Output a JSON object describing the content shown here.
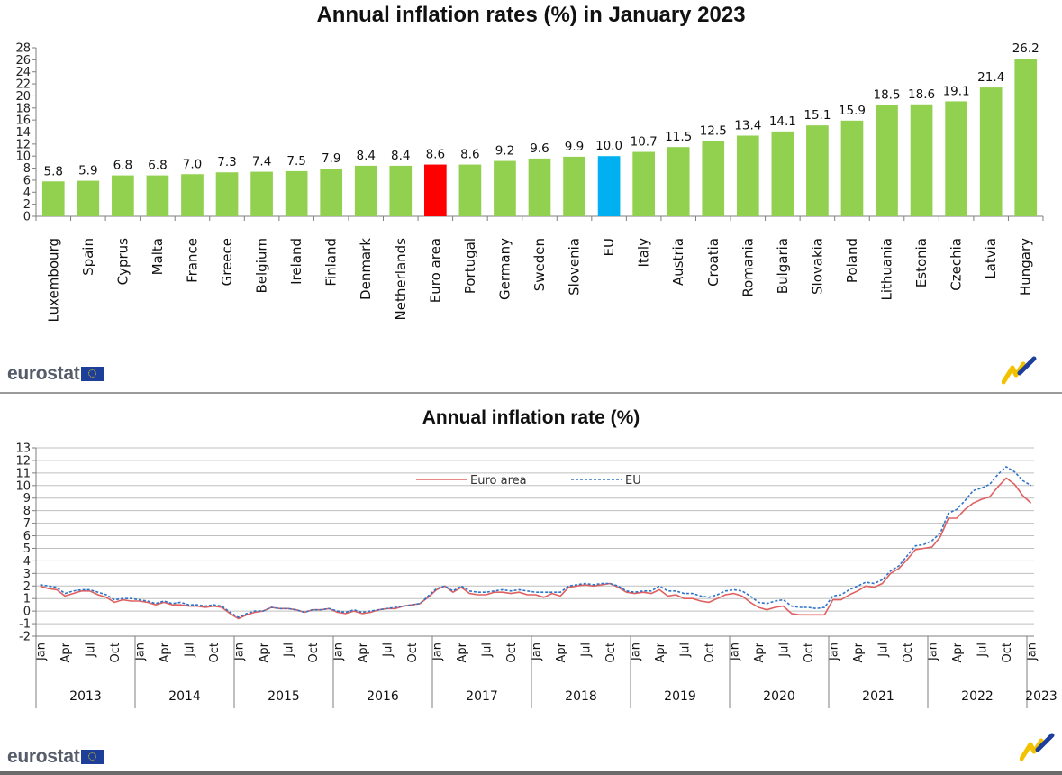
{
  "top_chart": {
    "title": "Annual inflation rates (%) in January 2023"
  },
  "bottom_chart": {
    "title": "Annual inflation rate (%)"
  },
  "branding": {
    "logo_text": "eurostat"
  },
  "colors": {
    "bar_default": "#92d050",
    "bar_euro_area": "#ff0000",
    "bar_eu": "#00b0f0",
    "line_euro_area": "#e06060",
    "line_eu": "#2e74c8"
  },
  "chart_data": [
    {
      "type": "bar",
      "title": "Annual inflation rates (%) in January 2023",
      "categories": [
        "Luxembourg",
        "Spain",
        "Cyprus",
        "Malta",
        "France",
        "Greece",
        "Belgium",
        "Ireland",
        "Finland",
        "Denmark",
        "Netherlands",
        "Euro area",
        "Portugal",
        "Germany",
        "Sweden",
        "Slovenia",
        "EU",
        "Italy",
        "Austria",
        "Croatia",
        "Romania",
        "Bulgaria",
        "Slovakia",
        "Poland",
        "Lithuania",
        "Estonia",
        "Czechia",
        "Latvia",
        "Hungary"
      ],
      "values": [
        5.8,
        5.9,
        6.8,
        6.8,
        7.0,
        7.3,
        7.4,
        7.5,
        7.9,
        8.4,
        8.4,
        8.6,
        8.6,
        9.2,
        9.6,
        9.9,
        10.0,
        10.7,
        11.5,
        12.5,
        13.4,
        14.1,
        15.1,
        15.9,
        18.5,
        18.6,
        19.1,
        21.4,
        26.2
      ],
      "value_labels": [
        "5.8",
        "5.9",
        "6.8",
        "6.8",
        "7.0",
        "7.3",
        "7.4",
        "7.5",
        "7.9",
        "8.4",
        "8.4",
        "8.6",
        "8.6",
        "9.2",
        "9.6",
        "9.9",
        "10.0",
        "10.7",
        "11.5",
        "12.5",
        "13.4",
        "14.1",
        "15.1",
        "15.9",
        "18.5",
        "18.6",
        "19.1",
        "21.4",
        "26.2"
      ],
      "highlight": {
        "Euro area": "#ff0000",
        "EU": "#00b0f0"
      },
      "ylim": [
        0,
        28
      ],
      "yticks": [
        "0",
        "2",
        "4",
        "6",
        "8",
        "10",
        "12",
        "14",
        "16",
        "18",
        "20",
        "22",
        "24",
        "26",
        "28"
      ],
      "grid": false,
      "legend": "none"
    },
    {
      "type": "line",
      "title": "Annual inflation rate (%)",
      "ylim": [
        -2,
        13
      ],
      "yticks": [
        "-2",
        "-1",
        "0",
        "1",
        "2",
        "3",
        "4",
        "5",
        "6",
        "7",
        "8",
        "9",
        "10",
        "11",
        "12",
        "13"
      ],
      "month_ticks": [
        "Jan",
        "Apr",
        "Jul",
        "Oct"
      ],
      "years": [
        "2013",
        "2014",
        "2015",
        "2016",
        "2017",
        "2018",
        "2019",
        "2020",
        "2021",
        "2022",
        "2023"
      ],
      "grid": true,
      "legend": "top-center",
      "series": [
        {
          "name": "Euro area",
          "values": [
            2.0,
            1.8,
            1.7,
            1.2,
            1.4,
            1.6,
            1.6,
            1.3,
            1.1,
            0.7,
            0.9,
            0.8,
            0.8,
            0.7,
            0.5,
            0.7,
            0.5,
            0.5,
            0.4,
            0.4,
            0.3,
            0.4,
            0.3,
            -0.2,
            -0.6,
            -0.3,
            -0.1,
            0.0,
            0.3,
            0.2,
            0.2,
            0.1,
            -0.1,
            0.1,
            0.1,
            0.2,
            -0.1,
            -0.2,
            0.0,
            -0.2,
            -0.1,
            0.1,
            0.2,
            0.2,
            0.4,
            0.5,
            0.6,
            1.1,
            1.7,
            2.0,
            1.5,
            1.9,
            1.4,
            1.3,
            1.3,
            1.5,
            1.5,
            1.4,
            1.5,
            1.3,
            1.3,
            1.1,
            1.4,
            1.2,
            1.9,
            2.0,
            2.1,
            2.0,
            2.1,
            2.2,
            1.9,
            1.5,
            1.4,
            1.5,
            1.4,
            1.7,
            1.2,
            1.3,
            1.0,
            1.0,
            0.8,
            0.7,
            1.0,
            1.3,
            1.4,
            1.2,
            0.7,
            0.3,
            0.1,
            0.3,
            0.4,
            -0.2,
            -0.3,
            -0.3,
            -0.3,
            -0.3,
            0.9,
            0.9,
            1.3,
            1.6,
            2.0,
            1.9,
            2.2,
            3.0,
            3.4,
            4.1,
            4.9,
            5.0,
            5.1,
            5.9,
            7.4,
            7.4,
            8.1,
            8.6,
            8.9,
            9.1,
            9.9,
            10.6,
            10.1,
            9.2,
            8.6
          ]
        },
        {
          "name": "EU",
          "values": [
            2.1,
            2.0,
            1.9,
            1.4,
            1.6,
            1.7,
            1.7,
            1.5,
            1.3,
            0.9,
            1.0,
            1.0,
            0.9,
            0.8,
            0.6,
            0.8,
            0.6,
            0.7,
            0.5,
            0.5,
            0.4,
            0.5,
            0.4,
            -0.1,
            -0.5,
            -0.2,
            0.0,
            0.0,
            0.3,
            0.2,
            0.2,
            0.1,
            -0.1,
            0.1,
            0.1,
            0.2,
            0.0,
            -0.1,
            0.1,
            -0.1,
            0.0,
            0.1,
            0.2,
            0.3,
            0.4,
            0.5,
            0.6,
            1.2,
            1.8,
            2.0,
            1.6,
            2.0,
            1.6,
            1.5,
            1.5,
            1.6,
            1.7,
            1.6,
            1.7,
            1.6,
            1.5,
            1.5,
            1.5,
            1.5,
            2.0,
            2.1,
            2.2,
            2.1,
            2.2,
            2.2,
            2.0,
            1.6,
            1.5,
            1.6,
            1.6,
            2.0,
            1.6,
            1.6,
            1.4,
            1.4,
            1.2,
            1.1,
            1.3,
            1.6,
            1.7,
            1.6,
            1.2,
            0.7,
            0.6,
            0.8,
            0.9,
            0.4,
            0.3,
            0.3,
            0.2,
            0.3,
            1.2,
            1.3,
            1.7,
            2.0,
            2.3,
            2.2,
            2.5,
            3.2,
            3.6,
            4.4,
            5.2,
            5.3,
            5.6,
            6.2,
            7.8,
            8.1,
            8.8,
            9.6,
            9.8,
            10.1,
            10.9,
            11.5,
            11.1,
            10.4,
            10.0
          ]
        }
      ]
    }
  ]
}
